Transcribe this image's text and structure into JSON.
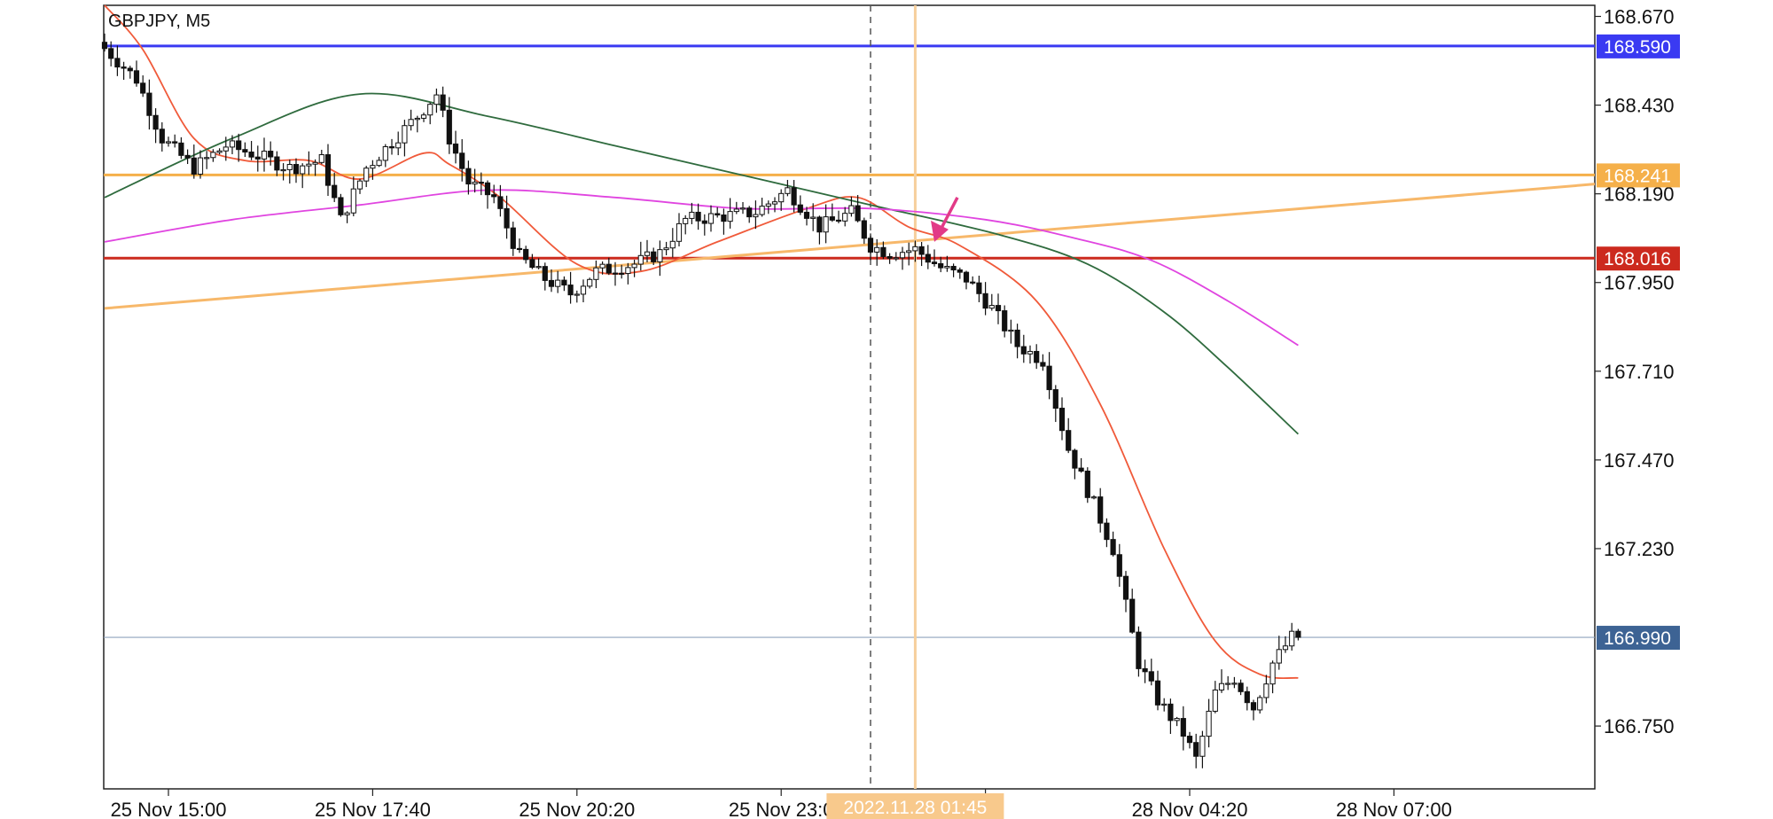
{
  "chart_data": {
    "type": "candlestick",
    "symbol_label": "GBPJPY, M5",
    "y_ticks": [
      "168.670",
      "168.430",
      "168.190",
      "167.950",
      "167.710",
      "167.470",
      "167.230",
      "166.750"
    ],
    "y_range": [
      166.58,
      168.7
    ],
    "x_ticks": [
      {
        "label": "25 Nov 15:00",
        "i": 10
      },
      {
        "label": "25 Nov 17:40",
        "i": 42
      },
      {
        "label": "25 Nov 20:20",
        "i": 74
      },
      {
        "label": "25 Nov 23:0",
        "i": 106
      },
      {
        "label": ":40",
        "i": 138
      },
      {
        "label": "28 Nov 04:20",
        "i": 170
      },
      {
        "label": "28 Nov 07:00",
        "i": 202
      }
    ],
    "crosshair_time_label": "2022.11.28 01:45",
    "crosshair_i": 127,
    "session_divider_i": 120,
    "current_price": {
      "value": 166.99,
      "label": "166.990",
      "color": "#3d6394"
    },
    "horizontal_levels": [
      {
        "name": "blue-level",
        "value": 168.59,
        "label": "168.590",
        "color": "#3a3af2"
      },
      {
        "name": "orange-level",
        "value": 168.241,
        "label": "168.241",
        "color": "#f5b04a"
      },
      {
        "name": "red-level",
        "value": 168.016,
        "label": "168.016",
        "color": "#cc2a1e"
      }
    ],
    "trendline": {
      "i1": 0,
      "p1": 167.88,
      "i2": 236,
      "p2": 168.22,
      "color": "#f7b86a"
    },
    "arrow_at": {
      "i": 130,
      "price": 168.06,
      "color": "#e23a87"
    },
    "moving_averages": [
      {
        "name": "fast-ma",
        "color": "#f05a3a",
        "points": [
          [
            0,
            168.7
          ],
          [
            6,
            168.58
          ],
          [
            14,
            168.34
          ],
          [
            22,
            168.28
          ],
          [
            32,
            168.28
          ],
          [
            40,
            168.23
          ],
          [
            50,
            168.3
          ],
          [
            54,
            168.27
          ],
          [
            62,
            168.18
          ],
          [
            74,
            168.0
          ],
          [
            84,
            167.98
          ],
          [
            96,
            168.06
          ],
          [
            110,
            168.15
          ],
          [
            118,
            168.18
          ],
          [
            126,
            168.1
          ],
          [
            134,
            168.05
          ],
          [
            146,
            167.9
          ],
          [
            156,
            167.62
          ],
          [
            166,
            167.23
          ],
          [
            174,
            166.98
          ],
          [
            181,
            166.89
          ],
          [
            187,
            166.88
          ]
        ]
      },
      {
        "name": "mid-ma",
        "color": "#2f6b3e",
        "points": [
          [
            0,
            168.18
          ],
          [
            20,
            168.34
          ],
          [
            40,
            168.46
          ],
          [
            60,
            168.4
          ],
          [
            80,
            168.32
          ],
          [
            100,
            168.24
          ],
          [
            120,
            168.16
          ],
          [
            140,
            168.08
          ],
          [
            154,
            168.0
          ],
          [
            166,
            167.87
          ],
          [
            176,
            167.72
          ],
          [
            187,
            167.54
          ]
        ]
      },
      {
        "name": "slow-ma",
        "color": "#e045e0",
        "points": [
          [
            0,
            168.06
          ],
          [
            20,
            168.12
          ],
          [
            40,
            168.16
          ],
          [
            60,
            168.2
          ],
          [
            80,
            168.18
          ],
          [
            100,
            168.15
          ],
          [
            120,
            168.15
          ],
          [
            138,
            168.12
          ],
          [
            152,
            168.07
          ],
          [
            164,
            168.01
          ],
          [
            176,
            167.9
          ],
          [
            187,
            167.78
          ]
        ]
      }
    ]
  }
}
